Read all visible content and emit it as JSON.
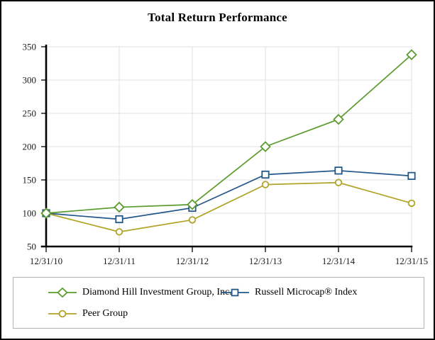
{
  "title": "Total Return Performance",
  "chart_data": {
    "type": "line",
    "categories": [
      "12/31/10",
      "12/31/11",
      "12/31/12",
      "12/31/13",
      "12/31/14",
      "12/31/15"
    ],
    "series": [
      {
        "name": "Diamond Hill Investment Group, Inc.",
        "marker": "diamond",
        "color": "#5a9b2d",
        "values": [
          100,
          109,
          113,
          200,
          241,
          338
        ]
      },
      {
        "name": "Russell Microcap® Index",
        "marker": "square",
        "color": "#235789",
        "values": [
          100,
          91,
          108,
          158,
          164,
          156
        ]
      },
      {
        "name": "Peer Group",
        "marker": "circle",
        "color": "#b0a328",
        "values": [
          100,
          72,
          90,
          143,
          146,
          115
        ]
      }
    ],
    "y_ticks": [
      50,
      100,
      150,
      200,
      250,
      300,
      350
    ],
    "ylim": [
      50,
      350
    ],
    "xlabel": "",
    "ylabel": "",
    "grid": true,
    "legend_position": "bottom"
  },
  "colors": {
    "gridline": "#e2e2e2",
    "axis": "#000000",
    "tick_label": "#1a1a1a",
    "legend_border": "#b3b3b3",
    "frame_border": "#000000",
    "marker_fill": "#ffffff"
  }
}
